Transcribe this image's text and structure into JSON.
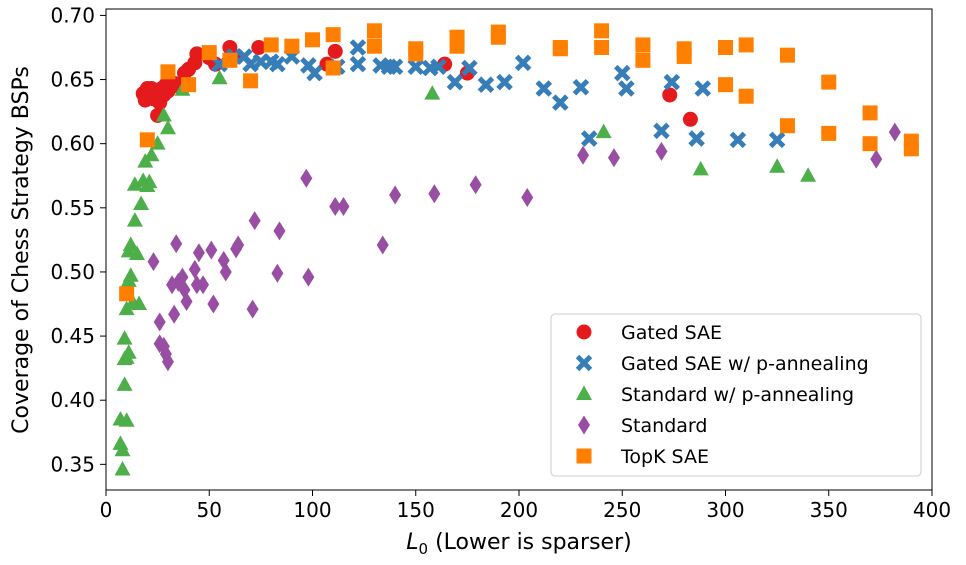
{
  "chart_data": {
    "type": "scatter",
    "title": "",
    "xlabel_math": "L",
    "xlabel_sub": "0",
    "xlabel_rest": " (Lower is sparser)",
    "ylabel": "Coverage of Chess Strategy BSPs",
    "xlim": [
      0,
      400
    ],
    "ylim": [
      0.33,
      0.705
    ],
    "xticks": [
      0,
      50,
      100,
      150,
      200,
      250,
      300,
      350,
      400
    ],
    "yticks": [
      0.35,
      0.4,
      0.45,
      0.5,
      0.55,
      0.6,
      0.65,
      0.7
    ],
    "grid": false,
    "legend_position": "lower-right",
    "series": [
      {
        "name": "Gated SAE",
        "marker": "circle",
        "color": "#e41a1c",
        "points": [
          [
            18,
            0.639
          ],
          [
            19,
            0.634
          ],
          [
            20,
            0.643
          ],
          [
            21,
            0.638
          ],
          [
            22,
            0.643
          ],
          [
            23,
            0.635
          ],
          [
            24,
            0.64
          ],
          [
            25,
            0.622
          ],
          [
            26,
            0.632
          ],
          [
            27,
            0.643
          ],
          [
            28,
            0.638
          ],
          [
            29,
            0.646
          ],
          [
            30,
            0.641
          ],
          [
            31,
            0.644
          ],
          [
            33,
            0.647
          ],
          [
            35,
            0.645
          ],
          [
            38,
            0.655
          ],
          [
            40,
            0.658
          ],
          [
            43,
            0.663
          ],
          [
            44,
            0.67
          ],
          [
            50,
            0.667
          ],
          [
            53,
            0.662
          ],
          [
            60,
            0.675
          ],
          [
            62,
            0.668
          ],
          [
            74,
            0.675
          ],
          [
            107,
            0.662
          ],
          [
            111,
            0.672
          ],
          [
            164,
            0.662
          ],
          [
            175,
            0.655
          ],
          [
            273,
            0.638
          ],
          [
            283,
            0.619
          ]
        ]
      },
      {
        "name": "Gated SAE w/ p-annealing",
        "marker": "x",
        "color": "#377eb8",
        "points": [
          [
            55,
            0.662
          ],
          [
            62,
            0.668
          ],
          [
            67,
            0.668
          ],
          [
            70,
            0.662
          ],
          [
            75,
            0.664
          ],
          [
            80,
            0.664
          ],
          [
            83,
            0.662
          ],
          [
            90,
            0.668
          ],
          [
            98,
            0.661
          ],
          [
            101,
            0.655
          ],
          [
            112,
            0.66
          ],
          [
            122,
            0.662
          ],
          [
            122,
            0.675
          ],
          [
            133,
            0.661
          ],
          [
            137,
            0.66
          ],
          [
            140,
            0.66
          ],
          [
            150,
            0.66
          ],
          [
            157,
            0.659
          ],
          [
            161,
            0.66
          ],
          [
            169,
            0.648
          ],
          [
            176,
            0.659
          ],
          [
            184,
            0.646
          ],
          [
            193,
            0.648
          ],
          [
            202,
            0.663
          ],
          [
            212,
            0.643
          ],
          [
            220,
            0.632
          ],
          [
            230,
            0.644
          ],
          [
            234,
            0.604
          ],
          [
            250,
            0.655
          ],
          [
            252,
            0.643
          ],
          [
            269,
            0.61
          ],
          [
            274,
            0.648
          ],
          [
            289,
            0.643
          ],
          [
            286,
            0.604
          ],
          [
            306,
            0.603
          ],
          [
            325,
            0.603
          ]
        ]
      },
      {
        "name": "Standard w/ p-annealing",
        "marker": "triangle",
        "color": "#4daf4a",
        "points": [
          [
            7,
            0.385
          ],
          [
            7,
            0.366
          ],
          [
            8,
            0.361
          ],
          [
            8,
            0.346
          ],
          [
            9,
            0.432
          ],
          [
            9,
            0.448
          ],
          [
            9,
            0.412
          ],
          [
            10,
            0.384
          ],
          [
            10,
            0.433
          ],
          [
            10,
            0.471
          ],
          [
            11,
            0.437
          ],
          [
            11,
            0.493
          ],
          [
            11,
            0.516
          ],
          [
            12,
            0.497
          ],
          [
            12,
            0.521
          ],
          [
            13,
            0.476
          ],
          [
            14,
            0.54
          ],
          [
            14,
            0.568
          ],
          [
            15,
            0.514
          ],
          [
            16,
            0.475
          ],
          [
            17,
            0.553
          ],
          [
            18,
            0.571
          ],
          [
            19,
            0.586
          ],
          [
            20,
            0.567
          ],
          [
            21,
            0.57
          ],
          [
            22,
            0.591
          ],
          [
            25,
            0.6
          ],
          [
            28,
            0.622
          ],
          [
            30,
            0.612
          ],
          [
            37,
            0.642
          ],
          [
            55,
            0.651
          ],
          [
            158,
            0.639
          ],
          [
            241,
            0.609
          ],
          [
            288,
            0.58
          ],
          [
            325,
            0.582
          ],
          [
            340,
            0.575
          ]
        ]
      },
      {
        "name": "Standard",
        "marker": "diamond",
        "color": "#984ea3",
        "points": [
          [
            23,
            0.508
          ],
          [
            26,
            0.444
          ],
          [
            26,
            0.461
          ],
          [
            28,
            0.442
          ],
          [
            29,
            0.436
          ],
          [
            30,
            0.43
          ],
          [
            32,
            0.49
          ],
          [
            33,
            0.467
          ],
          [
            34,
            0.522
          ],
          [
            35,
            0.492
          ],
          [
            37,
            0.496
          ],
          [
            38,
            0.486
          ],
          [
            39,
            0.477
          ],
          [
            43,
            0.502
          ],
          [
            44,
            0.49
          ],
          [
            45,
            0.515
          ],
          [
            47,
            0.49
          ],
          [
            51,
            0.517
          ],
          [
            52,
            0.475
          ],
          [
            57,
            0.509
          ],
          [
            58,
            0.5
          ],
          [
            63,
            0.518
          ],
          [
            64,
            0.521
          ],
          [
            71,
            0.471
          ],
          [
            72,
            0.54
          ],
          [
            83,
            0.499
          ],
          [
            84,
            0.532
          ],
          [
            97,
            0.573
          ],
          [
            98,
            0.496
          ],
          [
            111,
            0.551
          ],
          [
            115,
            0.551
          ],
          [
            134,
            0.521
          ],
          [
            140,
            0.56
          ],
          [
            159,
            0.561
          ],
          [
            179,
            0.568
          ],
          [
            204,
            0.558
          ],
          [
            231,
            0.591
          ],
          [
            246,
            0.589
          ],
          [
            269,
            0.594
          ],
          [
            373,
            0.588
          ],
          [
            382,
            0.609
          ]
        ]
      },
      {
        "name": "TopK SAE",
        "marker": "square",
        "color": "#ff7f00",
        "points": [
          [
            10,
            0.483
          ],
          [
            20,
            0.603
          ],
          [
            30,
            0.656
          ],
          [
            40,
            0.646
          ],
          [
            50,
            0.671
          ],
          [
            60,
            0.665
          ],
          [
            70,
            0.649
          ],
          [
            80,
            0.677
          ],
          [
            90,
            0.676
          ],
          [
            100,
            0.681
          ],
          [
            110,
            0.685
          ],
          [
            110,
            0.659
          ],
          [
            130,
            0.688
          ],
          [
            130,
            0.676
          ],
          [
            150,
            0.674
          ],
          [
            150,
            0.67
          ],
          [
            170,
            0.683
          ],
          [
            170,
            0.676
          ],
          [
            190,
            0.687
          ],
          [
            190,
            0.683
          ],
          [
            220,
            0.675
          ],
          [
            220,
            0.674
          ],
          [
            240,
            0.688
          ],
          [
            240,
            0.675
          ],
          [
            260,
            0.677
          ],
          [
            260,
            0.665
          ],
          [
            280,
            0.674
          ],
          [
            280,
            0.668
          ],
          [
            300,
            0.675
          ],
          [
            300,
            0.646
          ],
          [
            310,
            0.677
          ],
          [
            310,
            0.637
          ],
          [
            330,
            0.669
          ],
          [
            330,
            0.614
          ],
          [
            350,
            0.648
          ],
          [
            350,
            0.608
          ],
          [
            370,
            0.624
          ],
          [
            370,
            0.6
          ],
          [
            390,
            0.602
          ],
          [
            390,
            0.596
          ]
        ]
      }
    ]
  }
}
